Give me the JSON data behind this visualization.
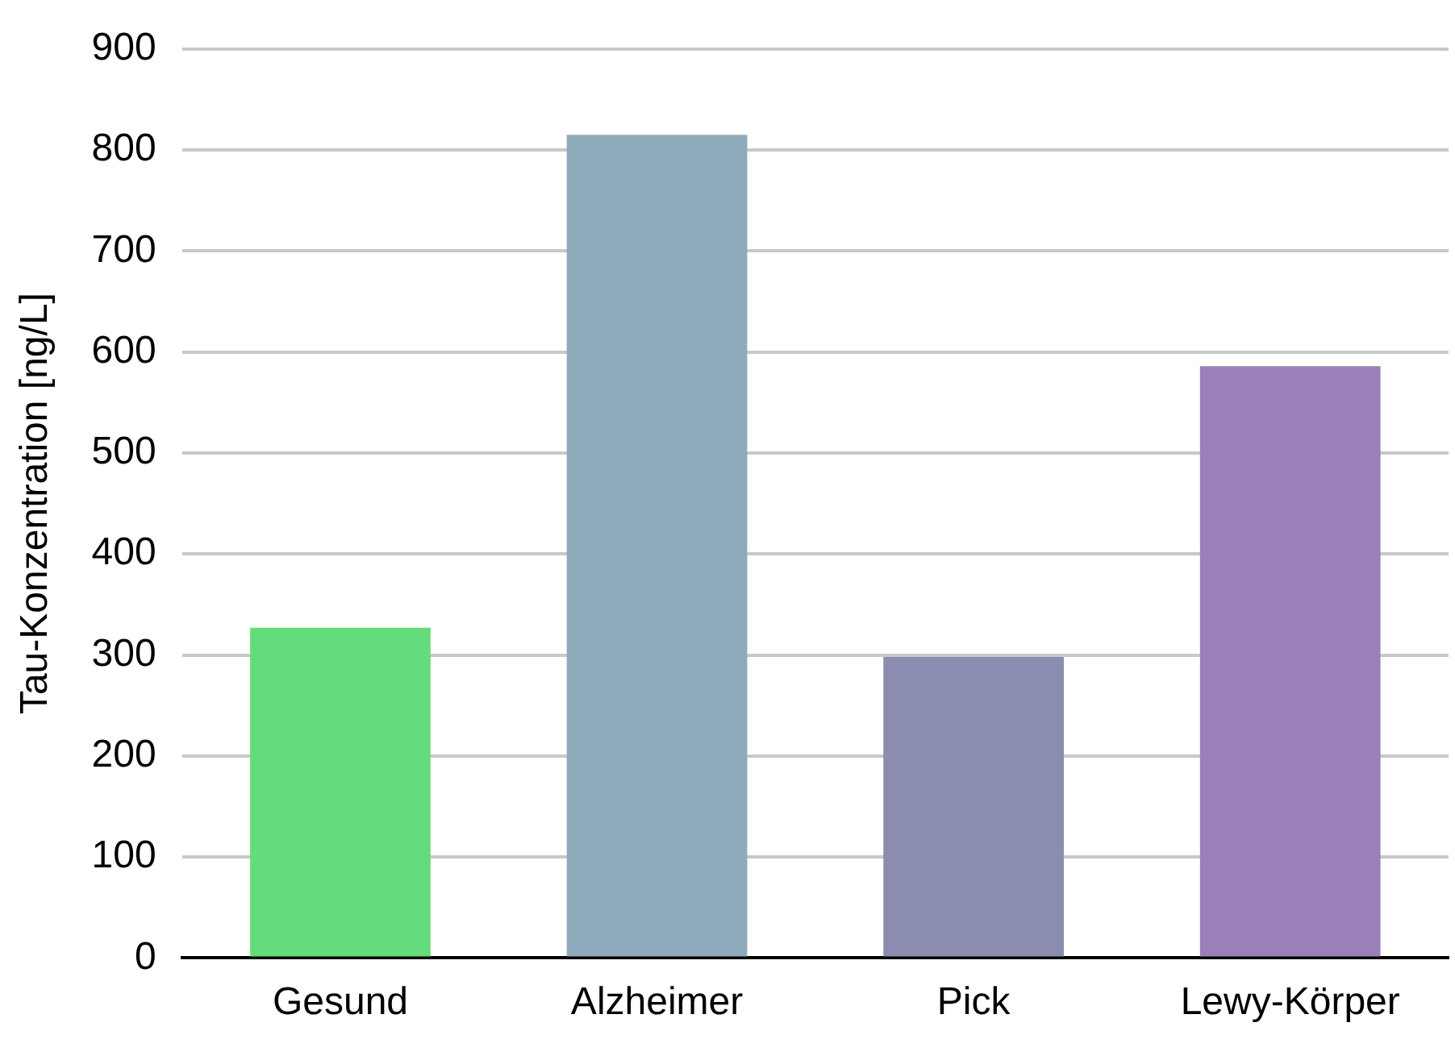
{
  "chart_data": {
    "type": "bar",
    "ylabel": "Tau-Konzentration [ng/L]",
    "categories": [
      "Gesund",
      "Alzheimer",
      "Pick",
      "Lewy-Körper"
    ],
    "values": [
      327,
      815,
      298,
      586
    ],
    "colors": [
      "#65dc7c",
      "#8eaabb",
      "#8a8cb0",
      "#9a80b8"
    ],
    "ylim": [
      0,
      900
    ],
    "yticks": [
      0,
      100,
      200,
      300,
      400,
      500,
      600,
      700,
      800,
      900
    ],
    "grid": "y",
    "legend": false
  }
}
